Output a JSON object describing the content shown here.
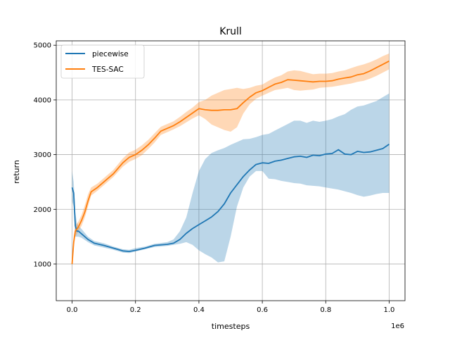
{
  "chart_data": {
    "type": "line",
    "title": "Krull",
    "xlabel": "timesteps",
    "ylabel": "return",
    "x_offset_label": "1e6",
    "xlim": [
      -0.05,
      1.05
    ],
    "ylim": [
      330,
      5080
    ],
    "x_ticks": [
      0.0,
      0.2,
      0.4,
      0.6,
      0.8,
      1.0
    ],
    "x_tick_labels": [
      "0.0",
      "0.2",
      "0.4",
      "0.6",
      "0.8",
      "1.0"
    ],
    "y_ticks": [
      1000,
      2000,
      3000,
      4000,
      5000
    ],
    "y_tick_labels": [
      "1000",
      "2000",
      "3000",
      "4000",
      "5000"
    ],
    "grid": true,
    "legend": "top-left",
    "series": [
      {
        "name": "piecewise",
        "color": "#1f77b4",
        "x": [
          0.0,
          0.005,
          0.01,
          0.015,
          0.02,
          0.03,
          0.05,
          0.07,
          0.1,
          0.13,
          0.16,
          0.18,
          0.2,
          0.23,
          0.26,
          0.3,
          0.32,
          0.34,
          0.36,
          0.38,
          0.4,
          0.42,
          0.44,
          0.46,
          0.48,
          0.5,
          0.52,
          0.54,
          0.56,
          0.58,
          0.6,
          0.62,
          0.64,
          0.66,
          0.68,
          0.7,
          0.72,
          0.74,
          0.76,
          0.78,
          0.8,
          0.82,
          0.84,
          0.86,
          0.88,
          0.9,
          0.92,
          0.94,
          0.96,
          0.98,
          1.0
        ],
        "y": [
          2400,
          2300,
          1700,
          1600,
          1600,
          1550,
          1450,
          1380,
          1340,
          1290,
          1240,
          1230,
          1250,
          1290,
          1340,
          1360,
          1380,
          1450,
          1560,
          1650,
          1720,
          1790,
          1860,
          1960,
          2100,
          2300,
          2450,
          2600,
          2720,
          2820,
          2850,
          2840,
          2880,
          2900,
          2930,
          2960,
          2970,
          2950,
          2990,
          2980,
          3010,
          3020,
          3090,
          3010,
          3000,
          3060,
          3040,
          3050,
          3080,
          3110,
          3190
        ],
        "lower": [
          2150,
          2050,
          1500,
          1500,
          1500,
          1480,
          1400,
          1340,
          1300,
          1260,
          1210,
          1200,
          1230,
          1270,
          1310,
          1330,
          1350,
          1370,
          1400,
          1350,
          1250,
          1180,
          1120,
          1030,
          1050,
          1500,
          2050,
          2400,
          2600,
          2700,
          2700,
          2560,
          2550,
          2520,
          2500,
          2480,
          2470,
          2440,
          2430,
          2420,
          2400,
          2380,
          2360,
          2330,
          2300,
          2260,
          2230,
          2250,
          2280,
          2300,
          2300
        ],
        "upper": [
          2700,
          2500,
          1950,
          1750,
          1700,
          1640,
          1500,
          1420,
          1380,
          1320,
          1270,
          1260,
          1290,
          1320,
          1370,
          1400,
          1450,
          1600,
          1850,
          2300,
          2700,
          2920,
          3030,
          3080,
          3120,
          3180,
          3230,
          3280,
          3290,
          3320,
          3360,
          3380,
          3440,
          3500,
          3560,
          3620,
          3620,
          3580,
          3620,
          3600,
          3620,
          3650,
          3700,
          3740,
          3820,
          3880,
          3900,
          3940,
          3980,
          4050,
          4120
        ]
      },
      {
        "name": "TES-SAC",
        "color": "#ff7f0e",
        "x": [
          0.0,
          0.005,
          0.01,
          0.02,
          0.03,
          0.04,
          0.05,
          0.06,
          0.08,
          0.1,
          0.13,
          0.16,
          0.18,
          0.2,
          0.22,
          0.24,
          0.26,
          0.28,
          0.3,
          0.32,
          0.34,
          0.36,
          0.38,
          0.4,
          0.42,
          0.44,
          0.46,
          0.48,
          0.5,
          0.52,
          0.54,
          0.56,
          0.58,
          0.6,
          0.62,
          0.64,
          0.66,
          0.68,
          0.7,
          0.72,
          0.74,
          0.76,
          0.78,
          0.8,
          0.82,
          0.84,
          0.86,
          0.88,
          0.9,
          0.92,
          0.94,
          0.96,
          0.98,
          1.0
        ],
        "y": [
          1000,
          1400,
          1600,
          1680,
          1800,
          1950,
          2150,
          2320,
          2400,
          2500,
          2650,
          2850,
          2950,
          3000,
          3080,
          3180,
          3300,
          3430,
          3480,
          3530,
          3600,
          3680,
          3760,
          3840,
          3820,
          3810,
          3810,
          3820,
          3820,
          3840,
          3950,
          4050,
          4130,
          4170,
          4230,
          4290,
          4320,
          4370,
          4360,
          4350,
          4340,
          4330,
          4340,
          4340,
          4350,
          4380,
          4400,
          4420,
          4460,
          4480,
          4530,
          4590,
          4650,
          4710
        ],
        "lower": [
          950,
          1300,
          1500,
          1600,
          1700,
          1850,
          2050,
          2250,
          2340,
          2440,
          2590,
          2780,
          2870,
          2920,
          2990,
          3100,
          3220,
          3360,
          3410,
          3460,
          3520,
          3590,
          3660,
          3720,
          3650,
          3550,
          3500,
          3450,
          3420,
          3500,
          3750,
          3920,
          4020,
          4080,
          4130,
          4180,
          4200,
          4220,
          4180,
          4170,
          4180,
          4190,
          4220,
          4230,
          4240,
          4260,
          4280,
          4300,
          4330,
          4350,
          4390,
          4440,
          4500,
          4560
        ],
        "upper": [
          1060,
          1500,
          1700,
          1780,
          1900,
          2070,
          2270,
          2400,
          2470,
          2570,
          2720,
          2930,
          3040,
          3090,
          3170,
          3270,
          3390,
          3510,
          3560,
          3610,
          3690,
          3780,
          3860,
          3960,
          4000,
          4080,
          4130,
          4180,
          4200,
          4220,
          4200,
          4220,
          4260,
          4280,
          4350,
          4410,
          4450,
          4520,
          4540,
          4530,
          4500,
          4470,
          4480,
          4480,
          4490,
          4520,
          4540,
          4580,
          4620,
          4650,
          4690,
          4740,
          4800,
          4850
        ]
      }
    ]
  }
}
